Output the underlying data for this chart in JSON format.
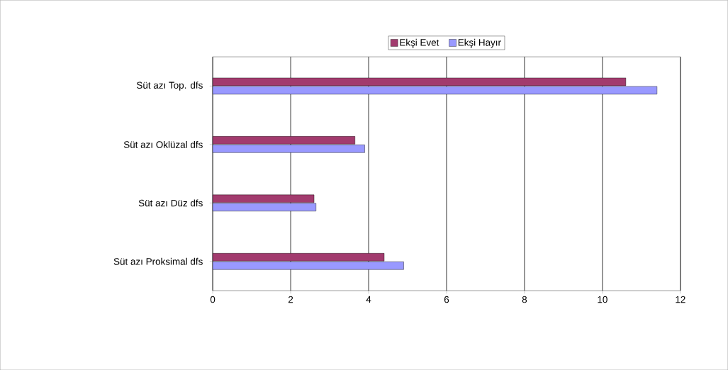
{
  "chart_data": {
    "type": "bar",
    "orientation": "horizontal",
    "categories": [
      "Süt azı Top. dfs",
      "Süt azı Oklüzal dfs",
      "Süt azı Düz dfs",
      "Süt azı Proksimal dfs"
    ],
    "series": [
      {
        "name": "Ekşi Evet",
        "color": "#a23b6e",
        "values": [
          10.6,
          3.65,
          2.6,
          4.4
        ]
      },
      {
        "name": "Ekşi Hayır",
        "color": "#9999ff",
        "values": [
          11.4,
          3.9,
          2.65,
          4.9
        ]
      }
    ],
    "xlim": [
      0,
      12
    ],
    "xticks": [
      0,
      2,
      4,
      6,
      8,
      10,
      12
    ],
    "grid": "x",
    "legend": "top"
  }
}
